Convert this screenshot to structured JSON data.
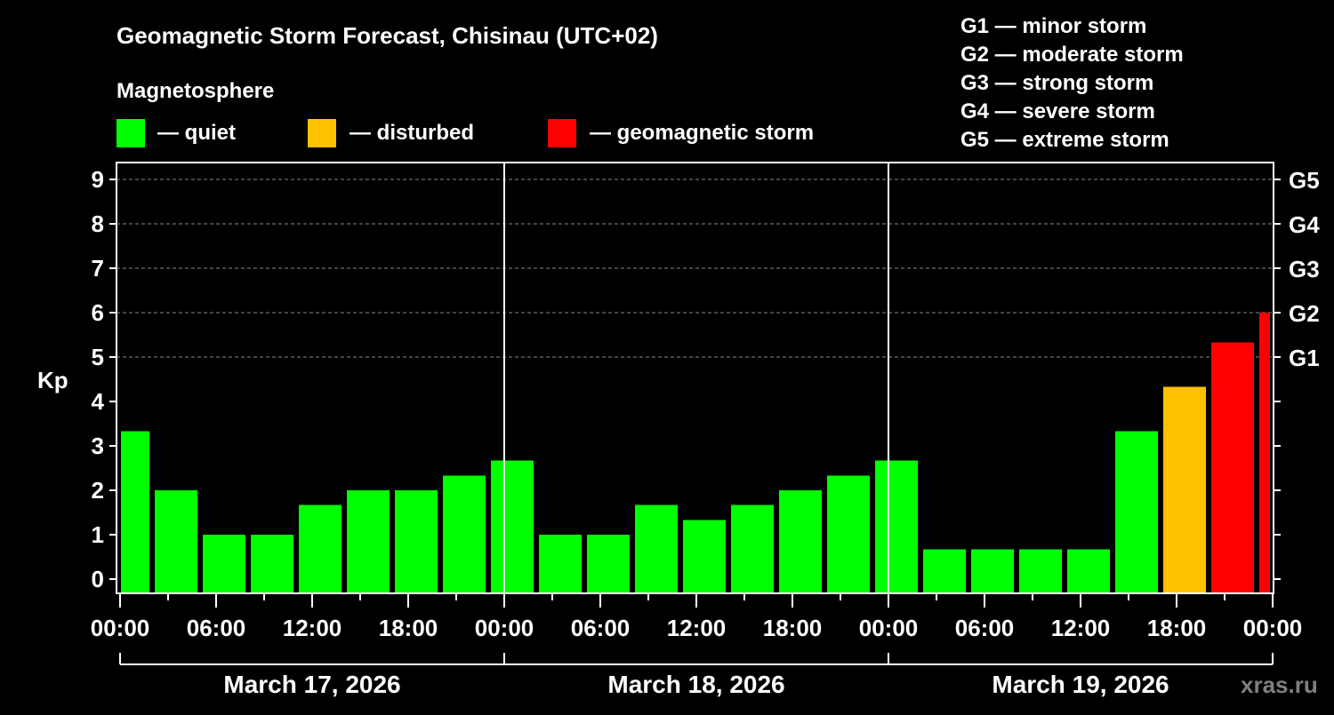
{
  "chart_data": {
    "type": "bar",
    "title": "Geomagnetic Storm Forecast, Chisinau (UTC+02)",
    "ylabel": "Kp",
    "ylim": [
      -0.33,
      9.6
    ],
    "yticks": [
      0,
      1,
      2,
      3,
      4,
      5,
      6,
      7,
      8,
      9
    ],
    "right_ticks": [
      {
        "kp": 5,
        "label": "G1"
      },
      {
        "kp": 6,
        "label": "G2"
      },
      {
        "kp": 7,
        "label": "G3"
      },
      {
        "kp": 8,
        "label": "G4"
      },
      {
        "kp": 9,
        "label": "G5"
      }
    ],
    "x_range_hours": [
      0,
      72
    ],
    "xtick_labels": [
      "00:00",
      "06:00",
      "12:00",
      "18:00",
      "00:00",
      "06:00",
      "12:00",
      "18:00",
      "00:00",
      "06:00",
      "12:00",
      "18:00",
      "00:00"
    ],
    "days": [
      "March 17, 2026",
      "March 18, 2026",
      "March 19, 2026"
    ],
    "grid": "dashed horizontal at Kp 6-9",
    "bar_hours": [
      0.5,
      3.5,
      6.5,
      9.5,
      12.5,
      15.5,
      18.5,
      21.5,
      24.5,
      27.5,
      30.5,
      33.5,
      36.5,
      39.5,
      42.5,
      45.5,
      48.5,
      51.5,
      54.5,
      57.5,
      60.5,
      63.5,
      66.5,
      69.5,
      72.5
    ],
    "values": [
      3.33,
      2,
      1,
      1,
      1.67,
      2,
      2,
      2.33,
      2.67,
      1,
      1,
      1.67,
      1.33,
      1.67,
      2,
      2.33,
      2.67,
      0.67,
      0.67,
      0.67,
      0.67,
      3.33,
      4.33,
      5.33,
      6
    ],
    "status": [
      "quiet",
      "quiet",
      "quiet",
      "quiet",
      "quiet",
      "quiet",
      "quiet",
      "quiet",
      "quiet",
      "quiet",
      "quiet",
      "quiet",
      "quiet",
      "quiet",
      "quiet",
      "quiet",
      "quiet",
      "quiet",
      "quiet",
      "quiet",
      "quiet",
      "quiet",
      "disturbed",
      "storm",
      "storm"
    ]
  },
  "colors": {
    "quiet": "#00ff00",
    "disturbed": "#ffc000",
    "storm": "#ff0000"
  },
  "legend": {
    "heading": "Magnetosphere",
    "quiet": "— quiet",
    "disturbed": "— disturbed",
    "storm": "— geomagnetic storm"
  },
  "scale": [
    "G1 — minor storm",
    "G2 — moderate storm",
    "G3 — strong storm",
    "G4 — severe storm",
    "G5 — extreme storm"
  ],
  "watermark": "xras.ru"
}
